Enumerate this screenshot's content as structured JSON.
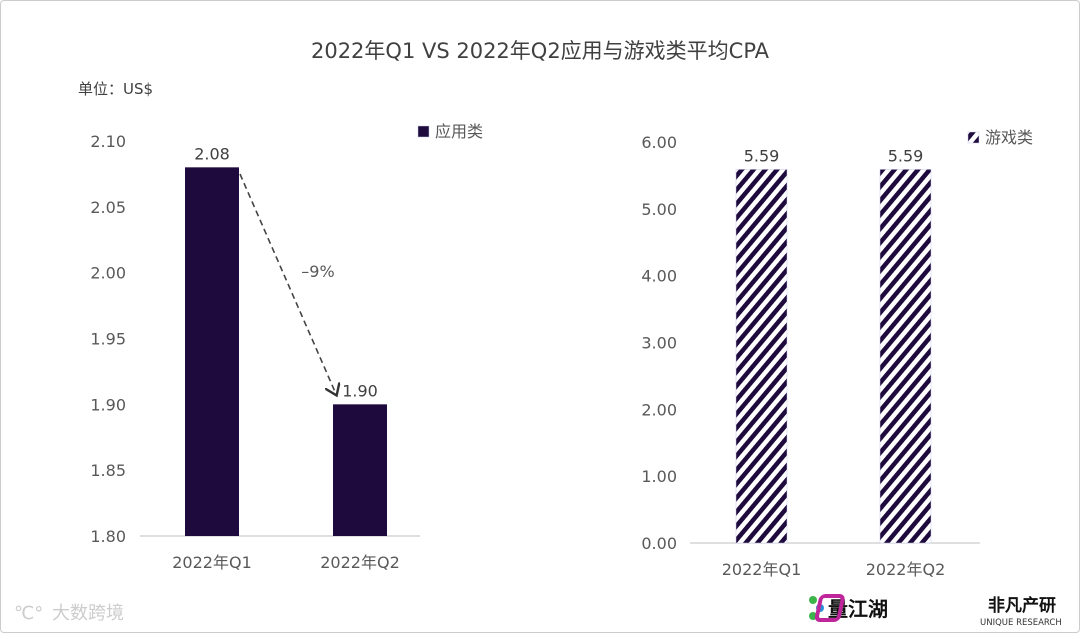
{
  "title": "2022年Q1 VS 2022年Q2应用与游戏类平均CPA",
  "unit": "单位：US$",
  "colors": {
    "bar": "#1e0a3c",
    "text": "#595959",
    "axis": "#bfbfbf"
  },
  "chart_data": [
    {
      "type": "bar",
      "categories": [
        "2022年Q1",
        "2022年Q2"
      ],
      "series": [
        {
          "name": "应用类",
          "values": [
            2.08,
            1.9
          ],
          "labels": [
            "2.08",
            "1.90"
          ]
        }
      ],
      "ylim": [
        1.8,
        2.1
      ],
      "yticks": [
        "1.80",
        "1.85",
        "1.90",
        "1.95",
        "2.00",
        "2.05",
        "2.10"
      ],
      "legend": "top-right",
      "annotation": "–9%",
      "grid": false,
      "fill": "solid"
    },
    {
      "type": "bar",
      "categories": [
        "2022年Q1",
        "2022年Q2"
      ],
      "series": [
        {
          "name": "游戏类",
          "values": [
            5.59,
            5.59
          ],
          "labels": [
            "5.59",
            "5.59"
          ]
        }
      ],
      "ylim": [
        0,
        6
      ],
      "yticks": [
        "0.00",
        "1.00",
        "2.00",
        "3.00",
        "4.00",
        "5.00",
        "6.00"
      ],
      "legend": "top-right",
      "grid": false,
      "fill": "diagonal-stripes"
    }
  ],
  "watermarks": {
    "left": "大数跨境",
    "right1": "量江湖",
    "right2": "非凡产研",
    "right2_sub": "UNIQUE RESEARCH"
  }
}
